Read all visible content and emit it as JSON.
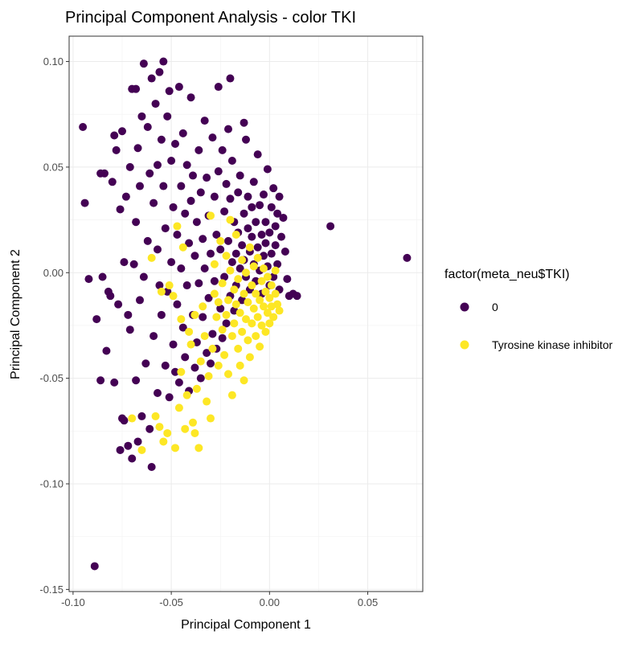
{
  "chart_data": {
    "type": "scatter",
    "title": "Principal Component Analysis - color TKI",
    "xlabel": "Principal Component 1",
    "ylabel": "Principal Component 2",
    "xlim": [
      -0.102,
      0.078
    ],
    "ylim": [
      -0.151,
      0.112
    ],
    "x_ticks": [
      -0.1,
      -0.05,
      0.0,
      0.05
    ],
    "x_tick_labels": [
      "-0.10",
      "-0.05",
      "0.00",
      "0.05"
    ],
    "y_ticks": [
      -0.15,
      -0.1,
      -0.05,
      0.0,
      0.05,
      0.1
    ],
    "y_tick_labels": [
      "-0.15",
      "-0.10",
      "-0.05",
      "0.00",
      "0.05",
      "0.10"
    ],
    "grid": true,
    "legend": {
      "title": "factor(meta_neu$TKI)",
      "position": "right",
      "entries": [
        "0",
        "Tyrosine kinase inhibitor"
      ]
    },
    "series": [
      {
        "label": "0",
        "color": "#440154",
        "points": [
          [
            -0.095,
            0.069
          ],
          [
            -0.094,
            0.033
          ],
          [
            -0.092,
            -0.003
          ],
          [
            -0.088,
            -0.022
          ],
          [
            -0.089,
            -0.139
          ],
          [
            -0.086,
            -0.051
          ],
          [
            -0.084,
            0.047
          ],
          [
            -0.085,
            -0.002
          ],
          [
            -0.083,
            -0.037
          ],
          [
            -0.082,
            -0.009
          ],
          [
            -0.081,
            -0.011
          ],
          [
            -0.08,
            0.043
          ],
          [
            -0.079,
            -0.052
          ],
          [
            -0.078,
            0.058
          ],
          [
            -0.077,
            -0.015
          ],
          [
            -0.076,
            -0.084
          ],
          [
            -0.076,
            0.03
          ],
          [
            -0.075,
            -0.069
          ],
          [
            -0.075,
            0.067
          ],
          [
            -0.074,
            0.005
          ],
          [
            -0.074,
            -0.07
          ],
          [
            -0.073,
            0.036
          ],
          [
            -0.072,
            -0.082
          ],
          [
            -0.072,
            -0.02
          ],
          [
            -0.071,
            -0.027
          ],
          [
            -0.071,
            0.05
          ],
          [
            -0.07,
            -0.088
          ],
          [
            -0.07,
            0.087
          ],
          [
            -0.069,
            0.004
          ],
          [
            -0.068,
            -0.051
          ],
          [
            -0.068,
            0.024
          ],
          [
            -0.067,
            0.059
          ],
          [
            -0.067,
            -0.08
          ],
          [
            -0.066,
            -0.013
          ],
          [
            -0.066,
            0.041
          ],
          [
            -0.065,
            -0.068
          ],
          [
            -0.065,
            0.074
          ],
          [
            -0.064,
            0.099
          ],
          [
            -0.064,
            -0.002
          ],
          [
            -0.063,
            -0.043
          ],
          [
            -0.062,
            0.069
          ],
          [
            -0.062,
            0.015
          ],
          [
            -0.061,
            -0.074
          ],
          [
            -0.061,
            0.047
          ],
          [
            -0.06,
            0.092
          ],
          [
            -0.06,
            -0.092
          ],
          [
            -0.059,
            -0.03
          ],
          [
            -0.059,
            0.033
          ],
          [
            -0.058,
            0.08
          ],
          [
            -0.057,
            -0.057
          ],
          [
            -0.057,
            0.011
          ],
          [
            -0.056,
            0.095
          ],
          [
            -0.056,
            -0.006
          ],
          [
            -0.055,
            0.063
          ],
          [
            -0.055,
            -0.02
          ],
          [
            -0.054,
            0.1
          ],
          [
            -0.054,
            0.041
          ],
          [
            -0.053,
            -0.044
          ],
          [
            -0.053,
            0.021
          ],
          [
            -0.052,
            0.074
          ],
          [
            -0.052,
            -0.009
          ],
          [
            -0.051,
            0.086
          ],
          [
            -0.051,
            -0.059
          ],
          [
            -0.05,
            0.053
          ],
          [
            -0.05,
            0.005
          ],
          [
            -0.049,
            -0.034
          ],
          [
            -0.049,
            0.031
          ],
          [
            -0.048,
            -0.047
          ],
          [
            -0.048,
            0.061
          ],
          [
            -0.047,
            0.018
          ],
          [
            -0.047,
            -0.015
          ],
          [
            -0.046,
            0.088
          ],
          [
            -0.046,
            -0.052
          ],
          [
            -0.045,
            0.041
          ],
          [
            -0.045,
            0.002
          ],
          [
            -0.044,
            -0.026
          ],
          [
            -0.044,
            0.066
          ],
          [
            -0.043,
            0.028
          ],
          [
            -0.043,
            -0.04
          ],
          [
            -0.042,
            0.051
          ],
          [
            -0.042,
            -0.006
          ],
          [
            -0.041,
            0.014
          ],
          [
            -0.041,
            -0.056
          ],
          [
            -0.04,
            0.034
          ],
          [
            -0.04,
            0.083
          ],
          [
            -0.039,
            -0.02
          ],
          [
            -0.039,
            0.046
          ],
          [
            -0.038,
            -0.045
          ],
          [
            -0.038,
            0.008
          ],
          [
            -0.037,
            0.024
          ],
          [
            -0.037,
            -0.033
          ],
          [
            -0.036,
            0.058
          ],
          [
            -0.036,
            -0.005
          ],
          [
            -0.035,
            0.038
          ],
          [
            -0.035,
            -0.05
          ],
          [
            -0.034,
            0.016
          ],
          [
            -0.034,
            -0.021
          ],
          [
            -0.033,
            0.072
          ],
          [
            -0.033,
            0.002
          ],
          [
            -0.032,
            -0.038
          ],
          [
            -0.032,
            0.045
          ],
          [
            -0.031,
            -0.012
          ],
          [
            -0.031,
            0.027
          ],
          [
            -0.03,
            -0.043
          ],
          [
            -0.03,
            0.009
          ],
          [
            -0.029,
            0.064
          ],
          [
            -0.029,
            -0.029
          ],
          [
            -0.028,
            0.036
          ],
          [
            -0.028,
            -0.004
          ],
          [
            -0.027,
            0.018
          ],
          [
            -0.027,
            -0.036
          ],
          [
            -0.026,
            0.088
          ],
          [
            -0.026,
            0.048
          ],
          [
            -0.025,
            -0.017
          ],
          [
            -0.025,
            0.011
          ],
          [
            -0.024,
            0.058
          ],
          [
            -0.024,
            -0.031
          ],
          [
            -0.023,
            0.029
          ],
          [
            -0.023,
            -0.002
          ],
          [
            -0.022,
            0.042
          ],
          [
            -0.022,
            -0.024
          ],
          [
            -0.021,
            0.068
          ],
          [
            -0.021,
            0.015
          ],
          [
            -0.02,
            -0.011
          ],
          [
            -0.02,
            0.035
          ],
          [
            -0.019,
            0.005
          ],
          [
            -0.019,
            0.053
          ],
          [
            -0.018,
            -0.018
          ],
          [
            -0.018,
            0.024
          ],
          [
            -0.017,
            0.009
          ],
          [
            -0.017,
            -0.006
          ],
          [
            -0.016,
            0.038
          ],
          [
            -0.016,
            0.019
          ],
          [
            -0.015,
            0.002
          ],
          [
            -0.015,
            0.046
          ],
          [
            -0.014,
            0.013
          ],
          [
            -0.014,
            -0.013
          ],
          [
            -0.013,
            0.028
          ],
          [
            -0.013,
            0.006
          ],
          [
            -0.012,
            0.063
          ],
          [
            -0.012,
            -0.002
          ],
          [
            -0.011,
            0.021
          ],
          [
            -0.011,
            0.036
          ],
          [
            -0.01,
            0.01
          ],
          [
            -0.01,
            -0.008
          ],
          [
            -0.009,
            0.031
          ],
          [
            -0.009,
            0.017
          ],
          [
            -0.008,
            0.004
          ],
          [
            -0.008,
            0.043
          ],
          [
            -0.007,
            -0.004
          ],
          [
            -0.007,
            0.024
          ],
          [
            -0.006,
            0.012
          ],
          [
            -0.006,
            0.056
          ],
          [
            -0.005,
            0.001
          ],
          [
            -0.005,
            0.032
          ],
          [
            -0.004,
            0.018
          ],
          [
            -0.004,
            -0.01
          ],
          [
            -0.003,
            0.008
          ],
          [
            -0.003,
            0.037
          ],
          [
            -0.002,
            0.024
          ],
          [
            -0.002,
            0.014
          ],
          [
            -0.001,
            0.003
          ],
          [
            -0.001,
            0.049
          ],
          [
            0.0,
            0.019
          ],
          [
            0.0,
            -0.006
          ],
          [
            0.001,
            0.031
          ],
          [
            0.001,
            0.009
          ],
          [
            0.002,
            0.04
          ],
          [
            0.002,
            -0.002
          ],
          [
            0.003,
            0.022
          ],
          [
            0.003,
            0.013
          ],
          [
            0.004,
            0.028
          ],
          [
            0.004,
            0.004
          ],
          [
            0.005,
            0.036
          ],
          [
            0.005,
            -0.008
          ],
          [
            0.006,
            0.017
          ],
          [
            0.007,
            0.026
          ],
          [
            0.008,
            0.01
          ],
          [
            0.009,
            -0.003
          ],
          [
            0.01,
            -0.011
          ],
          [
            0.012,
            -0.01
          ],
          [
            0.014,
            -0.011
          ],
          [
            0.031,
            0.022
          ],
          [
            0.07,
            0.007
          ],
          [
            -0.02,
            0.092
          ],
          [
            -0.013,
            0.071
          ],
          [
            -0.057,
            0.051
          ],
          [
            -0.068,
            0.087
          ],
          [
            -0.079,
            0.065
          ],
          [
            -0.086,
            0.047
          ]
        ]
      },
      {
        "label": "Tyrosine kinase inhibitor",
        "color": "#fde725",
        "points": [
          [
            -0.06,
            0.007
          ],
          [
            -0.058,
            -0.068
          ],
          [
            -0.056,
            -0.073
          ],
          [
            -0.054,
            -0.08
          ],
          [
            -0.052,
            -0.076
          ],
          [
            -0.051,
            -0.006
          ],
          [
            -0.049,
            -0.011
          ],
          [
            -0.048,
            -0.083
          ],
          [
            -0.047,
            0.022
          ],
          [
            -0.046,
            -0.064
          ],
          [
            -0.045,
            -0.047
          ],
          [
            -0.044,
            0.012
          ],
          [
            -0.043,
            -0.074
          ],
          [
            -0.042,
            -0.058
          ],
          [
            -0.041,
            -0.028
          ],
          [
            -0.04,
            -0.034
          ],
          [
            -0.039,
            -0.071
          ],
          [
            -0.038,
            -0.076
          ],
          [
            -0.037,
            -0.055
          ],
          [
            -0.036,
            -0.083
          ],
          [
            -0.035,
            -0.042
          ],
          [
            -0.034,
            -0.016
          ],
          [
            -0.033,
            -0.03
          ],
          [
            -0.032,
            -0.061
          ],
          [
            -0.031,
            -0.049
          ],
          [
            -0.03,
            -0.069
          ],
          [
            -0.03,
            0.027
          ],
          [
            -0.029,
            -0.036
          ],
          [
            -0.028,
            -0.01
          ],
          [
            -0.028,
            0.004
          ],
          [
            -0.027,
            -0.021
          ],
          [
            -0.026,
            -0.044
          ],
          [
            -0.026,
            -0.014
          ],
          [
            -0.025,
            0.015
          ],
          [
            -0.024,
            -0.027
          ],
          [
            -0.024,
            -0.005
          ],
          [
            -0.023,
            -0.039
          ],
          [
            -0.022,
            -0.02
          ],
          [
            -0.022,
            0.008
          ],
          [
            -0.021,
            -0.048
          ],
          [
            -0.021,
            -0.013
          ],
          [
            -0.02,
            0.001
          ],
          [
            -0.019,
            -0.03
          ],
          [
            -0.019,
            -0.058
          ],
          [
            -0.018,
            -0.008
          ],
          [
            -0.018,
            -0.024
          ],
          [
            -0.017,
            0.018
          ],
          [
            -0.017,
            -0.015
          ],
          [
            -0.016,
            -0.036
          ],
          [
            -0.016,
            -0.003
          ],
          [
            -0.015,
            -0.044
          ],
          [
            -0.015,
            -0.019
          ],
          [
            -0.014,
            0.006
          ],
          [
            -0.014,
            -0.028
          ],
          [
            -0.013,
            -0.01
          ],
          [
            -0.013,
            -0.051
          ],
          [
            -0.012,
            -0.022
          ],
          [
            -0.012,
            0.0
          ],
          [
            -0.011,
            -0.032
          ],
          [
            -0.011,
            -0.014
          ],
          [
            -0.01,
            0.012
          ],
          [
            -0.01,
            -0.04
          ],
          [
            -0.009,
            -0.006
          ],
          [
            -0.009,
            -0.024
          ],
          [
            -0.008,
            -0.017
          ],
          [
            -0.008,
            0.003
          ],
          [
            -0.007,
            -0.03
          ],
          [
            -0.007,
            -0.01
          ],
          [
            -0.006,
            -0.021
          ],
          [
            -0.006,
            0.007
          ],
          [
            -0.005,
            -0.013
          ],
          [
            -0.005,
            -0.035
          ],
          [
            -0.004,
            -0.004
          ],
          [
            -0.004,
            -0.025
          ],
          [
            -0.003,
            -0.016
          ],
          [
            -0.003,
            0.002
          ],
          [
            -0.002,
            -0.009
          ],
          [
            -0.002,
            -0.028
          ],
          [
            -0.001,
            -0.019
          ],
          [
            -0.001,
            -0.002
          ],
          [
            0.0,
            -0.012
          ],
          [
            0.0,
            -0.024
          ],
          [
            0.001,
            -0.006
          ],
          [
            0.001,
            -0.016
          ],
          [
            0.002,
            -0.021
          ],
          [
            0.003,
            -0.01
          ],
          [
            0.003,
            0.001
          ],
          [
            0.004,
            -0.015
          ],
          [
            0.005,
            -0.018
          ],
          [
            -0.055,
            -0.009
          ],
          [
            -0.065,
            -0.084
          ],
          [
            -0.07,
            -0.069
          ],
          [
            -0.045,
            -0.022
          ],
          [
            -0.038,
            -0.02
          ],
          [
            -0.02,
            0.025
          ]
        ]
      }
    ]
  }
}
